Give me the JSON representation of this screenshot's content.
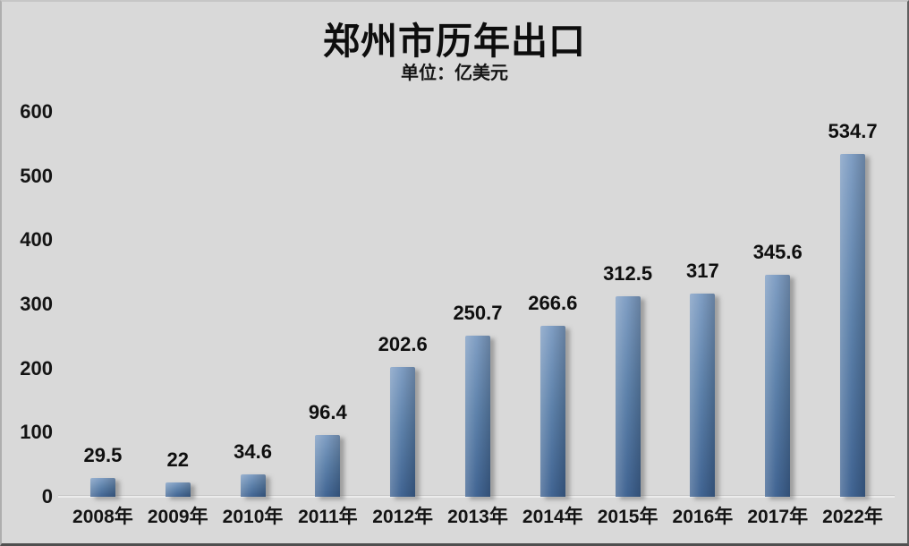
{
  "title": "郑州市历年出口",
  "subtitle": "单位：亿美元",
  "chart_data": {
    "type": "bar",
    "title": "郑州市历年出口",
    "subtitle": "单位：亿美元",
    "categories": [
      "2008年",
      "2009年",
      "2010年",
      "2011年",
      "2012年",
      "2013年",
      "2014年",
      "2015年",
      "2016年",
      "2017年",
      "2022年"
    ],
    "values": [
      29.5,
      22,
      34.6,
      96.4,
      202.6,
      250.7,
      266.6,
      312.5,
      317,
      345.6,
      534.7
    ],
    "value_labels": [
      "29.5",
      "22",
      "34.6",
      "96.4",
      "202.6",
      "250.7",
      "266.6",
      "312.5",
      "317",
      "345.6",
      "534.7"
    ],
    "xlabel": "",
    "ylabel": "",
    "ylim": [
      0,
      600
    ],
    "yticks": [
      0,
      100,
      200,
      300,
      400,
      500,
      600
    ],
    "grid": false,
    "legend_position": "none",
    "colors": {
      "background": "#d9d9d9",
      "bar_light": "#7d9cc2",
      "bar_mid": "#5a7fa9",
      "bar_dark": "#3d6190",
      "text": "#111111"
    }
  }
}
